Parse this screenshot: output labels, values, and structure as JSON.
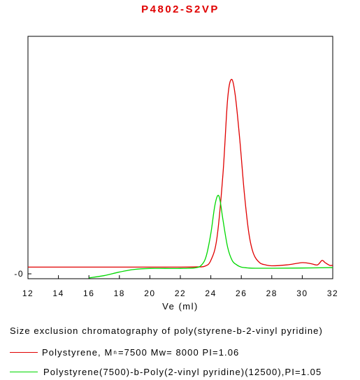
{
  "chart_data": {
    "type": "line",
    "title": "P4802-S2VP",
    "xlabel": "Ve (ml)",
    "ylabel": "",
    "xlim": [
      12,
      32
    ],
    "xticks": [
      "12",
      "14",
      "16",
      "18",
      "20",
      "22",
      "24",
      "26",
      "28",
      "30",
      "32"
    ],
    "yticks": [
      "-0"
    ],
    "grid": false,
    "caption": "Size exclusion chromatography of poly(styrene-b-2-vinyl pyridine)",
    "series": [
      {
        "color": "#e00000",
        "x": [
          12,
          14,
          16,
          18,
          20,
          22,
          23,
          23.6,
          24,
          24.4,
          24.8,
          25.1,
          25.35,
          25.6,
          25.9,
          26.2,
          26.5,
          26.8,
          27.2,
          27.6,
          28,
          29,
          30,
          30.6,
          31,
          31.3,
          31.5,
          31.8,
          32
        ],
        "y": [
          0.03,
          0.03,
          0.03,
          0.03,
          0.03,
          0.03,
          0.031,
          0.034,
          0.06,
          0.16,
          0.45,
          0.78,
          0.87,
          0.8,
          0.6,
          0.36,
          0.18,
          0.09,
          0.05,
          0.04,
          0.036,
          0.04,
          0.05,
          0.045,
          0.04,
          0.06,
          0.05,
          0.038,
          0.038
        ]
      },
      {
        "color": "#00d800",
        "x": [
          16,
          17,
          18,
          19,
          20,
          21,
          22,
          23,
          23.4,
          23.7,
          24,
          24.25,
          24.45,
          24.6,
          24.8,
          25.1,
          25.4,
          25.7,
          26,
          26.5,
          27,
          28,
          30,
          32
        ],
        "y": [
          -0.018,
          -0.008,
          0.008,
          0.02,
          0.024,
          0.024,
          0.024,
          0.027,
          0.04,
          0.08,
          0.18,
          0.3,
          0.35,
          0.33,
          0.24,
          0.12,
          0.06,
          0.04,
          0.03,
          0.026,
          0.025,
          0.025,
          0.026,
          0.028
        ]
      }
    ]
  },
  "legend": [
    {
      "text_before": "Polystyrene, M",
      "subscript": "n",
      "text_after": "=7500 Mw= 8000  PI=1.06",
      "color": "#e00000"
    },
    {
      "text_before": "Polystyrene(7500)-b-Poly(2-vinyl pyridine)(12500),PI=1.05",
      "subscript": "",
      "text_after": "",
      "color": "#00d800"
    }
  ]
}
